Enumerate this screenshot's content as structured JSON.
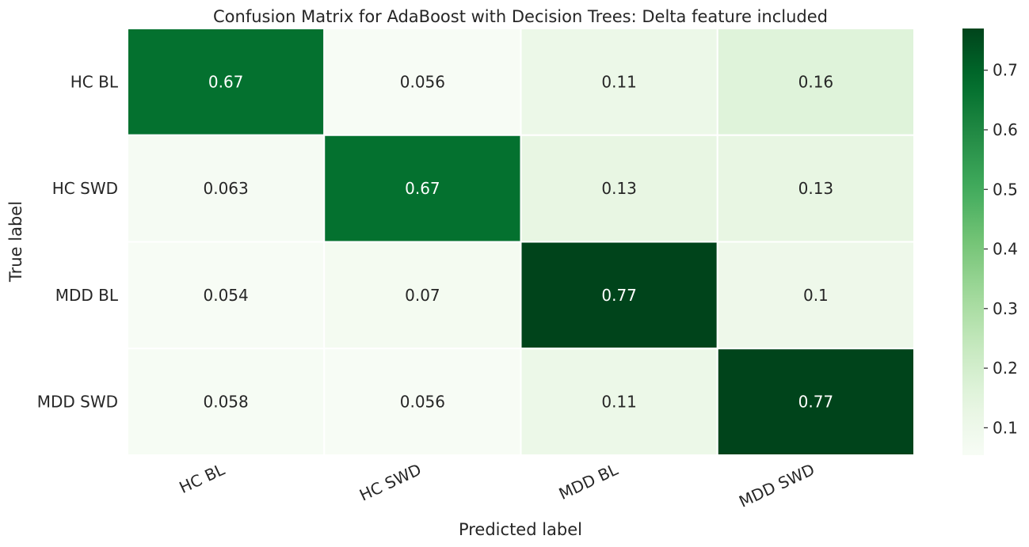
{
  "chart_data": {
    "type": "heatmap",
    "title": "Confusion Matrix for AdaBoost with Decision Trees: Delta feature included",
    "xlabel": "Predicted label",
    "ylabel": "True label",
    "x_categories": [
      "HC BL",
      "HC SWD",
      "MDD BL",
      "MDD SWD"
    ],
    "y_categories": [
      "HC BL",
      "HC SWD",
      "MDD BL",
      "MDD SWD"
    ],
    "values": [
      [
        0.67,
        0.056,
        0.11,
        0.16
      ],
      [
        0.063,
        0.67,
        0.13,
        0.13
      ],
      [
        0.054,
        0.07,
        0.77,
        0.1
      ],
      [
        0.058,
        0.056,
        0.11,
        0.77
      ]
    ],
    "value_labels": [
      [
        "0.67",
        "0.056",
        "0.11",
        "0.16"
      ],
      [
        "0.063",
        "0.67",
        "0.13",
        "0.13"
      ],
      [
        "0.054",
        "0.07",
        "0.77",
        "0.1"
      ],
      [
        "0.058",
        "0.056",
        "0.11",
        "0.77"
      ]
    ],
    "colormap": "Greens",
    "colorbar": {
      "range": [
        0.054,
        0.77
      ],
      "ticks": [
        0.1,
        0.2,
        0.3,
        0.4,
        0.5,
        0.6,
        0.7
      ],
      "tick_labels": [
        "0.1",
        "0.2",
        "0.3",
        "0.4",
        "0.5",
        "0.6",
        "0.7"
      ]
    },
    "colors": {
      "low": "#f7fcf5",
      "high": "#00441b",
      "grid_line": "#ffffff",
      "text_dark": "#262626",
      "text_light": "#ffffff"
    }
  }
}
